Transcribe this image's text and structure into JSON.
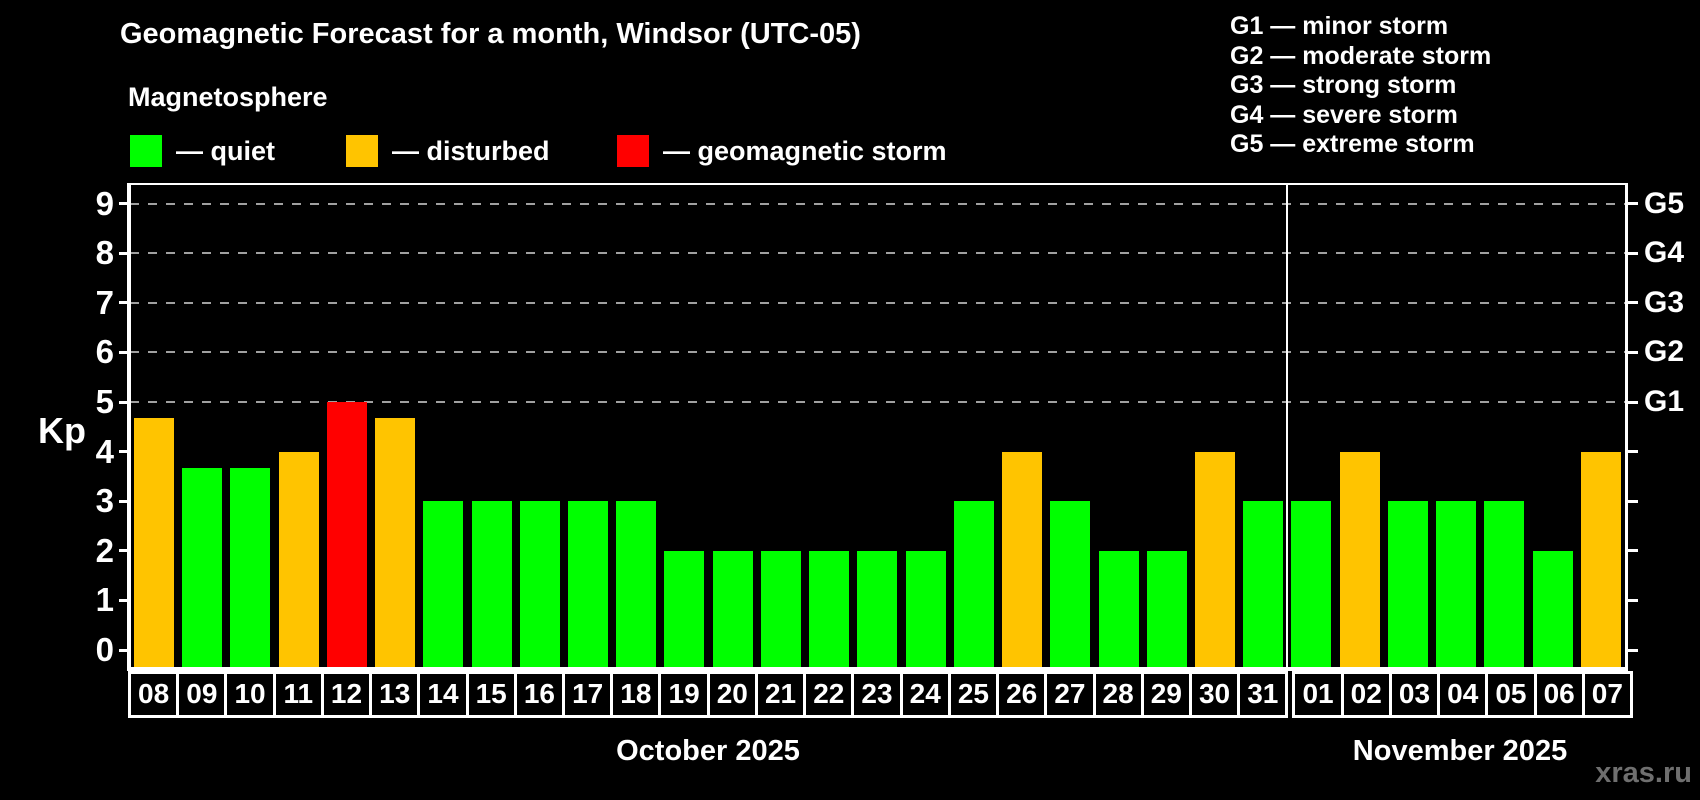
{
  "header": {
    "title": "Geomagnetic Forecast for a month, Windsor (UTC-05)",
    "subtitle": "Magnetosphere"
  },
  "legend": {
    "items": [
      {
        "key": "quiet",
        "label": "— quiet",
        "color": "#00ff00"
      },
      {
        "key": "disturbed",
        "label": "— disturbed",
        "color": "#ffc400"
      },
      {
        "key": "storm",
        "label": "— geomagnetic storm",
        "color": "#ff0000"
      }
    ]
  },
  "g_legend": {
    "lines": [
      "G1 — minor storm",
      "G2 — moderate storm",
      "G3 — strong storm",
      "G4 — severe storm",
      "G5 — extreme storm"
    ]
  },
  "axis": {
    "y_title": "Kp",
    "y_ticks": [
      0,
      1,
      2,
      3,
      4,
      5,
      6,
      7,
      8,
      9
    ],
    "gridlines_kp": [
      5,
      6,
      7,
      8,
      9
    ],
    "right_labels": [
      {
        "kp": 5,
        "label": "G1"
      },
      {
        "kp": 6,
        "label": "G2"
      },
      {
        "kp": 7,
        "label": "G3"
      },
      {
        "kp": 8,
        "label": "G4"
      },
      {
        "kp": 9,
        "label": "G5"
      }
    ]
  },
  "months": [
    {
      "name": "October 2025",
      "days": [
        {
          "label": "08",
          "kp": 4.67,
          "status": "disturbed"
        },
        {
          "label": "09",
          "kp": 3.67,
          "status": "quiet"
        },
        {
          "label": "10",
          "kp": 3.67,
          "status": "quiet"
        },
        {
          "label": "11",
          "kp": 4.0,
          "status": "disturbed"
        },
        {
          "label": "12",
          "kp": 5.0,
          "status": "storm"
        },
        {
          "label": "13",
          "kp": 4.67,
          "status": "disturbed"
        },
        {
          "label": "14",
          "kp": 3.0,
          "status": "quiet"
        },
        {
          "label": "15",
          "kp": 3.0,
          "status": "quiet"
        },
        {
          "label": "16",
          "kp": 3.0,
          "status": "quiet"
        },
        {
          "label": "17",
          "kp": 3.0,
          "status": "quiet"
        },
        {
          "label": "18",
          "kp": 3.0,
          "status": "quiet"
        },
        {
          "label": "19",
          "kp": 2.0,
          "status": "quiet"
        },
        {
          "label": "20",
          "kp": 2.0,
          "status": "quiet"
        },
        {
          "label": "21",
          "kp": 2.0,
          "status": "quiet"
        },
        {
          "label": "22",
          "kp": 2.0,
          "status": "quiet"
        },
        {
          "label": "23",
          "kp": 2.0,
          "status": "quiet"
        },
        {
          "label": "24",
          "kp": 2.0,
          "status": "quiet"
        },
        {
          "label": "25",
          "kp": 3.0,
          "status": "quiet"
        },
        {
          "label": "26",
          "kp": 4.0,
          "status": "disturbed"
        },
        {
          "label": "27",
          "kp": 3.0,
          "status": "quiet"
        },
        {
          "label": "28",
          "kp": 2.0,
          "status": "quiet"
        },
        {
          "label": "29",
          "kp": 2.0,
          "status": "quiet"
        },
        {
          "label": "30",
          "kp": 4.0,
          "status": "disturbed"
        },
        {
          "label": "31",
          "kp": 3.0,
          "status": "quiet"
        }
      ]
    },
    {
      "name": "November 2025",
      "days": [
        {
          "label": "01",
          "kp": 3.0,
          "status": "quiet"
        },
        {
          "label": "02",
          "kp": 4.0,
          "status": "disturbed"
        },
        {
          "label": "03",
          "kp": 3.0,
          "status": "quiet"
        },
        {
          "label": "04",
          "kp": 3.0,
          "status": "quiet"
        },
        {
          "label": "05",
          "kp": 3.0,
          "status": "quiet"
        },
        {
          "label": "06",
          "kp": 2.0,
          "status": "quiet"
        },
        {
          "label": "07",
          "kp": 4.0,
          "status": "disturbed"
        }
      ]
    }
  ],
  "watermark": "xras.ru",
  "colors": {
    "quiet": "#00ff00",
    "disturbed": "#ffc400",
    "storm": "#ff0000",
    "grid": "#a0a0a0",
    "axis": "#ffffff",
    "watermark": "#6f6f6f",
    "background": "#000000"
  },
  "chart_data": {
    "type": "bar",
    "title": "Geomagnetic Forecast for a month, Windsor (UTC-05)",
    "subtitle": "Magnetosphere",
    "xlabel": "",
    "ylabel": "Kp",
    "ylim": [
      0,
      9
    ],
    "y_ticks": [
      0,
      1,
      2,
      3,
      4,
      5,
      6,
      7,
      8,
      9
    ],
    "grid": "dashed horizontal lines at Kp 5-9 only",
    "legend_position": "top-left",
    "legend_entries": [
      "quiet",
      "disturbed",
      "geomagnetic storm"
    ],
    "right_axis": {
      "G1": 5,
      "G2": 6,
      "G3": 7,
      "G4": 8,
      "G5": 9
    },
    "g_scale_descriptions": [
      "G1 — minor storm",
      "G2 — moderate storm",
      "G3 — strong storm",
      "G4 — severe storm",
      "G5 — extreme storm"
    ],
    "categories": [
      "Oct 08",
      "Oct 09",
      "Oct 10",
      "Oct 11",
      "Oct 12",
      "Oct 13",
      "Oct 14",
      "Oct 15",
      "Oct 16",
      "Oct 17",
      "Oct 18",
      "Oct 19",
      "Oct 20",
      "Oct 21",
      "Oct 22",
      "Oct 23",
      "Oct 24",
      "Oct 25",
      "Oct 26",
      "Oct 27",
      "Oct 28",
      "Oct 29",
      "Oct 30",
      "Oct 31",
      "Nov 01",
      "Nov 02",
      "Nov 03",
      "Nov 04",
      "Nov 05",
      "Nov 06",
      "Nov 07"
    ],
    "series": [
      {
        "name": "Kp forecast",
        "values": [
          4.67,
          3.67,
          3.67,
          4.0,
          5.0,
          4.67,
          3.0,
          3.0,
          3.0,
          3.0,
          3.0,
          2.0,
          2.0,
          2.0,
          2.0,
          2.0,
          2.0,
          3.0,
          4.0,
          3.0,
          2.0,
          2.0,
          4.0,
          3.0,
          3.0,
          4.0,
          3.0,
          3.0,
          3.0,
          2.0,
          4.0
        ]
      }
    ],
    "point_status": [
      "disturbed",
      "quiet",
      "quiet",
      "disturbed",
      "storm",
      "disturbed",
      "quiet",
      "quiet",
      "quiet",
      "quiet",
      "quiet",
      "quiet",
      "quiet",
      "quiet",
      "quiet",
      "quiet",
      "quiet",
      "quiet",
      "disturbed",
      "quiet",
      "quiet",
      "quiet",
      "disturbed",
      "quiet",
      "quiet",
      "disturbed",
      "quiet",
      "quiet",
      "quiet",
      "quiet",
      "disturbed"
    ],
    "status_colors": {
      "quiet": "#00ff00",
      "disturbed": "#ffc400",
      "storm": "#ff0000"
    },
    "month_separator_after_category": "Oct 31",
    "footer_month_labels": [
      "October 2025",
      "November 2025"
    ],
    "watermark": "xras.ru"
  }
}
